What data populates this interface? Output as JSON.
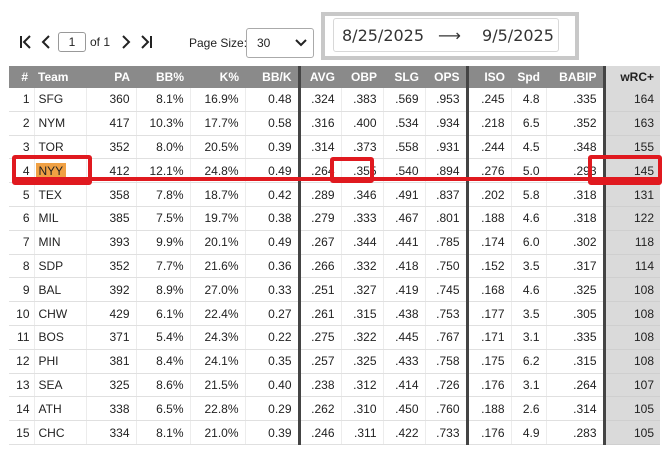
{
  "pager": {
    "page": "1",
    "of_text": "of 1",
    "page_size_label": "Page Size:",
    "page_size": "30"
  },
  "date_range": {
    "start": "8/25/2025",
    "arrow": "⟶",
    "end": "9/5/2025"
  },
  "table": {
    "headers": [
      "#",
      "Team",
      "PA",
      "BB%",
      "K%",
      "BB/K",
      "AVG",
      "OBP",
      "SLG",
      "OPS",
      "ISO",
      "Spd",
      "BABIP",
      "wRC+"
    ],
    "rows": [
      [
        "1",
        "SFG",
        "360",
        "8.1%",
        "16.9%",
        "0.48",
        ".324",
        ".383",
        ".569",
        ".953",
        ".245",
        "4.8",
        ".335",
        "164"
      ],
      [
        "2",
        "NYM",
        "417",
        "10.3%",
        "17.7%",
        "0.58",
        ".316",
        ".400",
        ".534",
        ".934",
        ".218",
        "6.5",
        ".352",
        "163"
      ],
      [
        "3",
        "TOR",
        "352",
        "8.0%",
        "20.5%",
        "0.39",
        ".314",
        ".373",
        ".558",
        ".931",
        ".244",
        "4.5",
        ".348",
        "155"
      ],
      [
        "4",
        "NYY",
        "412",
        "12.1%",
        "24.8%",
        "0.49",
        ".264",
        ".355",
        ".540",
        ".894",
        ".276",
        "5.0",
        ".293",
        "145"
      ],
      [
        "5",
        "TEX",
        "358",
        "7.8%",
        "18.7%",
        "0.42",
        ".289",
        ".346",
        ".491",
        ".837",
        ".202",
        "5.8",
        ".318",
        "131"
      ],
      [
        "6",
        "MIL",
        "385",
        "7.5%",
        "19.7%",
        "0.38",
        ".279",
        ".333",
        ".467",
        ".801",
        ".188",
        "4.6",
        ".318",
        "122"
      ],
      [
        "7",
        "MIN",
        "393",
        "9.9%",
        "20.1%",
        "0.49",
        ".267",
        ".344",
        ".441",
        ".785",
        ".174",
        "6.0",
        ".302",
        "118"
      ],
      [
        "8",
        "SDP",
        "352",
        "7.7%",
        "21.6%",
        "0.36",
        ".266",
        ".332",
        ".418",
        ".750",
        ".152",
        "3.5",
        ".317",
        "114"
      ],
      [
        "9",
        "BAL",
        "392",
        "8.9%",
        "27.0%",
        "0.33",
        ".251",
        ".327",
        ".419",
        ".745",
        ".168",
        "4.6",
        ".325",
        "108"
      ],
      [
        "10",
        "CHW",
        "429",
        "6.1%",
        "22.4%",
        "0.27",
        ".261",
        ".315",
        ".438",
        ".753",
        ".177",
        "3.5",
        ".305",
        "108"
      ],
      [
        "11",
        "BOS",
        "371",
        "5.4%",
        "24.3%",
        "0.22",
        ".275",
        ".322",
        ".445",
        ".767",
        ".171",
        "3.1",
        ".335",
        "108"
      ],
      [
        "12",
        "PHI",
        "381",
        "8.4%",
        "24.1%",
        "0.35",
        ".257",
        ".325",
        ".433",
        ".758",
        ".175",
        "6.2",
        ".315",
        "108"
      ],
      [
        "13",
        "SEA",
        "325",
        "8.6%",
        "21.5%",
        "0.40",
        ".238",
        ".312",
        ".414",
        ".726",
        ".176",
        "3.1",
        ".264",
        "107"
      ],
      [
        "14",
        "ATH",
        "338",
        "6.5%",
        "22.8%",
        "0.29",
        ".262",
        ".310",
        ".450",
        ".760",
        ".188",
        "2.6",
        ".314",
        "105"
      ],
      [
        "15",
        "CHC",
        "334",
        "8.1%",
        "21.0%",
        "0.39",
        ".246",
        ".311",
        ".422",
        ".733",
        ".176",
        "4.9",
        ".283",
        "105"
      ]
    ]
  },
  "highlight": {
    "team_row_index": 3,
    "team_highlight_color": "#f0a144",
    "annotation_color": "#e0191f"
  },
  "colors": {
    "header_bg": "#8a8a8a",
    "wrc_col_bg": "#dadada"
  }
}
